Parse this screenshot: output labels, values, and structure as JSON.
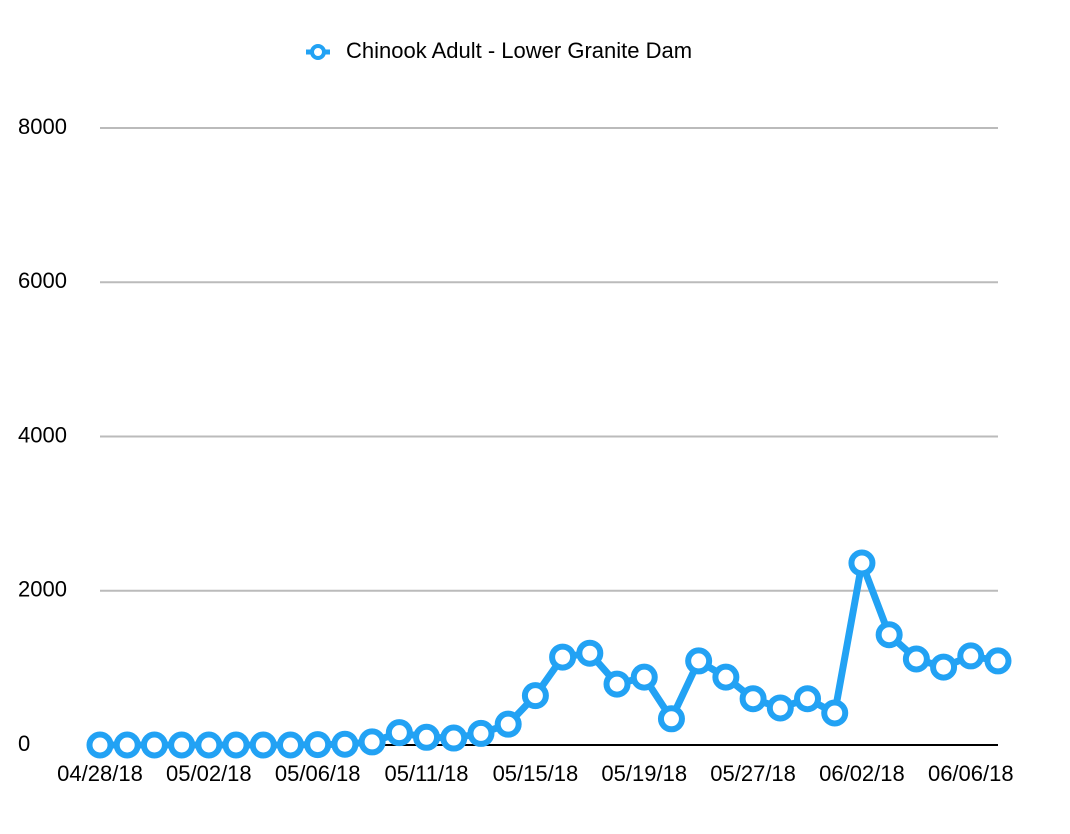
{
  "chart_data": {
    "type": "line",
    "categories": [
      "04/28/18",
      null,
      null,
      null,
      "05/02/18",
      null,
      null,
      null,
      "05/06/18",
      null,
      null,
      null,
      "05/11/18",
      null,
      null,
      null,
      "05/15/18",
      null,
      null,
      null,
      "05/19/18",
      null,
      null,
      null,
      "05/27/18",
      null,
      null,
      null,
      "06/02/18",
      null,
      null,
      null,
      "06/06/18",
      null
    ],
    "series": [
      {
        "name": "Chinook Adult - Lower Granite Dam",
        "color": "#22a2f4",
        "values": [
          0,
          0,
          0,
          0,
          0,
          0,
          0,
          0,
          5,
          10,
          40,
          160,
          100,
          90,
          150,
          270,
          640,
          1140,
          1190,
          790,
          880,
          340,
          1090,
          880,
          600,
          480,
          600,
          415,
          2360,
          1430,
          1115,
          1010,
          1155,
          1090
        ]
      }
    ],
    "ylim": [
      0,
      8000
    ],
    "yticks": [
      0,
      2000,
      4000,
      6000,
      8000
    ],
    "grid": true,
    "legend": "top"
  }
}
